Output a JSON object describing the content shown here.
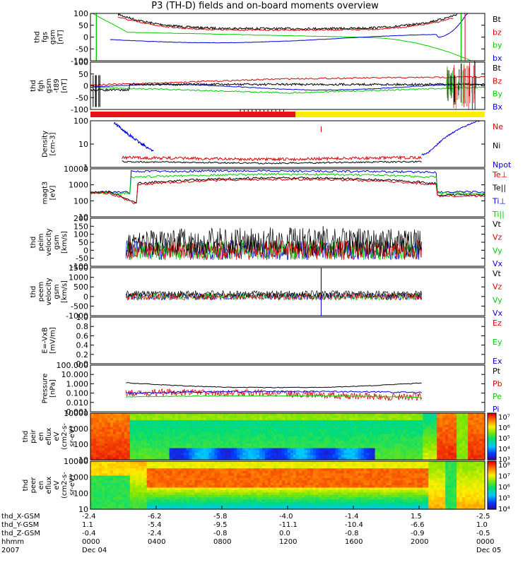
{
  "title": "P3 (TH-D) fields and on-board moments overview",
  "chart_data": [
    {
      "type": "line",
      "ylabel": [
        "thd",
        "fgs",
        "gsm",
        "[nT]"
      ],
      "yticks": [
        "100",
        "50",
        "0",
        "-50",
        "-100"
      ],
      "ylim": [
        -100,
        100
      ],
      "legend": [
        {
          "name": "Bt",
          "color": "#000000"
        },
        {
          "name": "bz",
          "color": "#dd0000"
        },
        {
          "name": "by",
          "color": "#00cc00"
        },
        {
          "name": "bx",
          "color": "#0000dd"
        }
      ]
    },
    {
      "type": "line",
      "ylabel": [
        "thd",
        "fgh",
        "gsm",
        "-t89",
        "[nT]"
      ],
      "yticks": [
        "100",
        "50",
        "0",
        "-50",
        "-100"
      ],
      "ylim": [
        -100,
        100
      ],
      "legend": [
        {
          "name": "Bt",
          "color": "#000000"
        },
        {
          "name": "Bz",
          "color": "#dd0000"
        },
        {
          "name": "By",
          "color": "#00cc00"
        },
        {
          "name": "Bx",
          "color": "#0000dd"
        }
      ]
    },
    {
      "type": "line",
      "ylabel": [
        "Density",
        "[cm-3]"
      ],
      "yticks": [
        "100",
        "10",
        "1"
      ],
      "log": true,
      "legend": [
        {
          "name": "Ne",
          "color": "#dd0000"
        },
        {
          "name": "Ni",
          "color": "#000000"
        },
        {
          "name": "Npot",
          "color": "#0000dd"
        }
      ]
    },
    {
      "type": "line",
      "ylabel": [
        "magt3",
        "[eV]"
      ],
      "yticks": [
        "10000",
        "1000",
        "100",
        "10"
      ],
      "log": true,
      "legend": [
        {
          "name": "Te⊥",
          "color": "#dd0000"
        },
        {
          "name": "Te||",
          "color": "#000000"
        },
        {
          "name": "Ti⊥",
          "color": "#0000dd"
        },
        {
          "name": "Ti||",
          "color": "#00cc00"
        }
      ]
    },
    {
      "type": "line",
      "ylabel": [
        "thd",
        "peim",
        "velocity",
        "gsm",
        "[km/s]"
      ],
      "yticks": [
        "200",
        "150",
        "100",
        "50",
        "0",
        "-50",
        "-100"
      ],
      "ylim": [
        -100,
        200
      ],
      "legend": [
        {
          "name": "Vt",
          "color": "#000000"
        },
        {
          "name": "Vz",
          "color": "#dd0000"
        },
        {
          "name": "Vy",
          "color": "#00cc00"
        },
        {
          "name": "Vx",
          "color": "#0000dd"
        }
      ]
    },
    {
      "type": "line",
      "ylabel": [
        "thd",
        "peem",
        "velocity",
        "gsm",
        "[km/s]"
      ],
      "yticks": [
        "1500",
        "1000",
        "500",
        "0",
        "-500",
        "-1000"
      ],
      "ylim": [
        -1000,
        1500
      ],
      "legend": [
        {
          "name": "Vt",
          "color": "#000000"
        },
        {
          "name": "Vz",
          "color": "#dd0000"
        },
        {
          "name": "Vy",
          "color": "#00cc00"
        },
        {
          "name": "Vx",
          "color": "#0000dd"
        }
      ]
    },
    {
      "type": "line",
      "ylabel": [
        "E=-VxB",
        "[mV/m]"
      ],
      "yticks": [
        "1.0",
        "0.8",
        "0.6",
        "0.4",
        "0.2",
        "0.0"
      ],
      "ylim": [
        0,
        1
      ],
      "legend": [
        {
          "name": "Ez",
          "color": "#dd0000"
        },
        {
          "name": "Ey",
          "color": "#00cc00"
        },
        {
          "name": "Ex",
          "color": "#0000dd"
        }
      ]
    },
    {
      "type": "line",
      "ylabel": [
        "Pressure",
        "[nPa]"
      ],
      "yticks": [
        "100.000",
        "10.000",
        "1.000",
        "0.100",
        "0.010",
        "0.001"
      ],
      "log": true,
      "legend": [
        {
          "name": "Pt",
          "color": "#000000"
        },
        {
          "name": "Pb",
          "color": "#dd0000"
        },
        {
          "name": "Pe",
          "color": "#00cc00"
        },
        {
          "name": "Pi",
          "color": "#0000dd"
        }
      ]
    },
    {
      "type": "heatmap",
      "ylabel": [
        "thd",
        "peir",
        "en",
        "eflux",
        "eV",
        "(cm2-s-",
        "sr-eV)"
      ],
      "yticks": [
        "10000",
        "1000",
        "100",
        "10"
      ],
      "colorbar": [
        "10⁷",
        "10⁶",
        "10⁵",
        "10⁴",
        "10³"
      ]
    },
    {
      "type": "heatmap",
      "ylabel": [
        "thd",
        "peer",
        "en",
        "eflux",
        "eV",
        "(cm2-s-",
        "sr-eV)"
      ],
      "yticks": [
        "10000",
        "1000",
        "100",
        "10"
      ],
      "colorbar": [
        "10⁸",
        "10⁷",
        "10⁶",
        "10⁵",
        "10⁴"
      ]
    }
  ],
  "xaxis": {
    "row_labels": [
      "thd_X-GSM",
      "thd_Y-GSM",
      "thd_Z-GSM",
      "hhmm",
      "2007"
    ],
    "columns": [
      [
        "-2.4",
        "1.1",
        "-0.4",
        "0000",
        "Dec 04"
      ],
      [
        "-6.2",
        "-5.4",
        "-2.4",
        "0400",
        ""
      ],
      [
        "-5.8",
        "-9.5",
        "-0.8",
        "0800",
        ""
      ],
      [
        "-4.0",
        "-11.1",
        "0.0",
        "1200",
        ""
      ],
      [
        "-1.4",
        "-10.4",
        "-0.8",
        "1600",
        ""
      ],
      [
        "1.5",
        "-6.6",
        "-0.9",
        "2000",
        ""
      ],
      [
        "-2.5",
        "1.0",
        "-0.5",
        "0000",
        "Dec 05"
      ]
    ]
  }
}
